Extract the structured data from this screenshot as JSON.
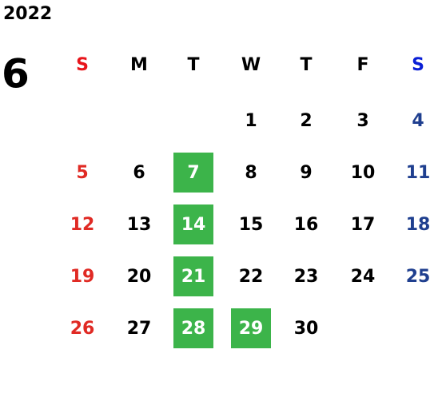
{
  "calendar": {
    "year": "2022",
    "month": "6",
    "weekdays": [
      "S",
      "M",
      "T",
      "W",
      "T",
      "F",
      "S"
    ],
    "weeks": [
      [
        null,
        null,
        null,
        {
          "day": "1"
        },
        {
          "day": "2"
        },
        {
          "day": "3"
        },
        {
          "day": "4"
        }
      ],
      [
        {
          "day": "5"
        },
        {
          "day": "6"
        },
        {
          "day": "7",
          "highlight": true
        },
        {
          "day": "8"
        },
        {
          "day": "9"
        },
        {
          "day": "10"
        },
        {
          "day": "11"
        }
      ],
      [
        {
          "day": "12"
        },
        {
          "day": "13"
        },
        {
          "day": "14",
          "highlight": true
        },
        {
          "day": "15"
        },
        {
          "day": "16"
        },
        {
          "day": "17"
        },
        {
          "day": "18"
        }
      ],
      [
        {
          "day": "19"
        },
        {
          "day": "20"
        },
        {
          "day": "21",
          "highlight": true
        },
        {
          "day": "22"
        },
        {
          "day": "23"
        },
        {
          "day": "24"
        },
        {
          "day": "25"
        }
      ],
      [
        {
          "day": "26"
        },
        {
          "day": "27"
        },
        {
          "day": "28",
          "highlight": true
        },
        {
          "day": "29",
          "highlight": true
        },
        {
          "day": "30"
        },
        null,
        null
      ]
    ]
  }
}
